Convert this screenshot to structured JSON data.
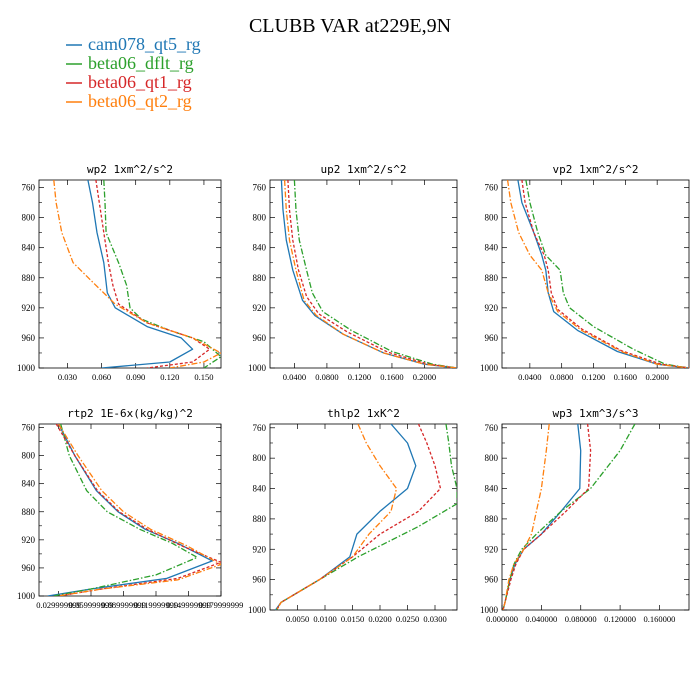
{
  "figure": {
    "title": "CLUBB VAR at229E,9N"
  },
  "legend": [
    {
      "label": "cam078_qt5_rg",
      "color": "#1f77b4"
    },
    {
      "label": "beta06_dflt_rg",
      "color": "#2ca02c"
    },
    {
      "label": "beta06_qt1_rg",
      "color": "#d62728"
    },
    {
      "label": "beta06_qt2_rg",
      "color": "#ff7f0e"
    }
  ],
  "chart_data": [
    {
      "type": "line",
      "title": "wp2   1xm^2/s^2",
      "xlim": [
        0.005,
        0.165
      ],
      "ylim": [
        750,
        1000
      ],
      "y_inverted": true,
      "xticks": [
        0.03,
        0.06,
        0.09,
        0.12,
        0.15
      ],
      "xtick_labels": [
        "0.030",
        "0.060",
        "0.090",
        "0.120",
        "0.150"
      ],
      "yticks": [
        760,
        800,
        840,
        880,
        920,
        960,
        1000
      ],
      "series": [
        {
          "color": "#1f77b4",
          "dash": "solid",
          "x": [
            0.048,
            0.052,
            0.056,
            0.062,
            0.065,
            0.072,
            0.1,
            0.13,
            0.14,
            0.12,
            0.06
          ],
          "y": [
            750,
            780,
            820,
            860,
            900,
            920,
            945,
            960,
            975,
            992,
            1000
          ]
        },
        {
          "color": "#2ca02c",
          "dash": "dashdot",
          "x": [
            0.062,
            0.063,
            0.064,
            0.075,
            0.082,
            0.085,
            0.095,
            0.12,
            0.15,
            0.165,
            0.15
          ],
          "y": [
            750,
            780,
            820,
            860,
            890,
            920,
            935,
            950,
            965,
            985,
            1000
          ]
        },
        {
          "color": "#d62728",
          "dash": "dashed",
          "x": [
            0.055,
            0.058,
            0.062,
            0.066,
            0.07,
            0.075,
            0.1,
            0.14,
            0.155,
            0.14,
            0.1
          ],
          "y": [
            750,
            780,
            820,
            860,
            890,
            915,
            940,
            960,
            975,
            992,
            1000
          ]
        },
        {
          "color": "#ff7f0e",
          "dash": "dashdot",
          "x": [
            0.018,
            0.02,
            0.025,
            0.035,
            0.055,
            0.072,
            0.1,
            0.14,
            0.165,
            0.15,
            0.12
          ],
          "y": [
            750,
            780,
            820,
            860,
            890,
            915,
            940,
            960,
            980,
            992,
            1000
          ]
        }
      ]
    },
    {
      "type": "line",
      "title": "up2   1xm^2/s^2",
      "xlim": [
        0.01,
        0.24
      ],
      "ylim": [
        750,
        1000
      ],
      "y_inverted": true,
      "xticks": [
        0.04,
        0.08,
        0.12,
        0.16,
        0.2
      ],
      "xtick_labels": [
        "0.0400",
        "0.0800",
        "0.1200",
        "0.1600",
        "0.2000"
      ],
      "yticks": [
        760,
        800,
        840,
        880,
        920,
        960,
        1000
      ],
      "series": [
        {
          "color": "#1f77b4",
          "dash": "solid",
          "x": [
            0.024,
            0.026,
            0.03,
            0.038,
            0.05,
            0.065,
            0.1,
            0.15,
            0.2,
            0.24
          ],
          "y": [
            750,
            790,
            830,
            870,
            910,
            930,
            955,
            980,
            995,
            1000
          ]
        },
        {
          "color": "#2ca02c",
          "dash": "dashdot",
          "x": [
            0.04,
            0.042,
            0.046,
            0.055,
            0.062,
            0.075,
            0.11,
            0.16,
            0.21,
            0.24
          ],
          "y": [
            750,
            790,
            830,
            870,
            900,
            925,
            950,
            978,
            995,
            1000
          ]
        },
        {
          "color": "#d62728",
          "dash": "dashed",
          "x": [
            0.032,
            0.034,
            0.038,
            0.045,
            0.055,
            0.07,
            0.105,
            0.155,
            0.205,
            0.24
          ],
          "y": [
            750,
            790,
            830,
            870,
            905,
            928,
            952,
            979,
            995,
            1000
          ]
        },
        {
          "color": "#ff7f0e",
          "dash": "dashdot",
          "x": [
            0.028,
            0.03,
            0.034,
            0.042,
            0.052,
            0.067,
            0.1,
            0.15,
            0.2,
            0.24
          ],
          "y": [
            750,
            790,
            830,
            870,
            910,
            930,
            955,
            980,
            995,
            1000
          ]
        }
      ]
    },
    {
      "type": "line",
      "title": "vp2   1xm^2/s^2",
      "xlim": [
        0.005,
        0.24
      ],
      "ylim": [
        750,
        1000
      ],
      "y_inverted": true,
      "xticks": [
        0.04,
        0.08,
        0.12,
        0.16,
        0.2
      ],
      "xtick_labels": [
        "0.0400",
        "0.0800",
        "0.1200",
        "0.1600",
        "0.2000"
      ],
      "yticks": [
        760,
        800,
        840,
        880,
        920,
        960,
        1000
      ],
      "series": [
        {
          "color": "#1f77b4",
          "dash": "solid",
          "x": [
            0.025,
            0.03,
            0.045,
            0.055,
            0.06,
            0.063,
            0.07,
            0.1,
            0.15,
            0.2,
            0.24
          ],
          "y": [
            750,
            780,
            820,
            850,
            870,
            900,
            925,
            950,
            978,
            995,
            1000
          ]
        },
        {
          "color": "#2ca02c",
          "dash": "dashdot",
          "x": [
            0.035,
            0.04,
            0.05,
            0.06,
            0.078,
            0.082,
            0.09,
            0.12,
            0.17,
            0.21,
            0.24
          ],
          "y": [
            750,
            780,
            820,
            850,
            870,
            900,
            920,
            945,
            975,
            995,
            1000
          ]
        },
        {
          "color": "#d62728",
          "dash": "dashed",
          "x": [
            0.03,
            0.034,
            0.045,
            0.058,
            0.063,
            0.067,
            0.075,
            0.105,
            0.155,
            0.205,
            0.24
          ],
          "y": [
            750,
            780,
            820,
            850,
            870,
            900,
            922,
            948,
            977,
            995,
            1000
          ]
        },
        {
          "color": "#ff7f0e",
          "dash": "dashdot",
          "x": [
            0.012,
            0.016,
            0.026,
            0.04,
            0.055,
            0.063,
            0.075,
            0.105,
            0.155,
            0.2,
            0.24
          ],
          "y": [
            750,
            780,
            820,
            850,
            870,
            900,
            925,
            950,
            978,
            995,
            1000
          ]
        }
      ]
    },
    {
      "type": "line",
      "title": "rtp2   1E-6x(kg/kg)^2",
      "xlim": [
        0.012,
        0.18
      ],
      "ylim": [
        755,
        1000
      ],
      "y_inverted": true,
      "xticks": [
        0.03,
        0.06,
        0.09,
        0.12,
        0.15,
        0.18
      ],
      "xtick_labels": [
        "0.029999999",
        "0.059999999",
        "0.089999999",
        "0.119999999",
        "0.149999999",
        "0.179999999"
      ],
      "yticks": [
        760,
        800,
        840,
        880,
        920,
        960,
        1000
      ],
      "series": [
        {
          "color": "#1f77b4",
          "dash": "solid",
          "x": [
            0.03,
            0.045,
            0.065,
            0.085,
            0.11,
            0.14,
            0.172,
            0.13,
            0.06,
            0.02
          ],
          "y": [
            755,
            800,
            850,
            880,
            905,
            925,
            950,
            975,
            990,
            1000
          ]
        },
        {
          "color": "#2ca02c",
          "dash": "dashdot",
          "x": [
            0.032,
            0.04,
            0.056,
            0.075,
            0.105,
            0.135,
            0.158,
            0.12,
            0.06,
            0.025
          ],
          "y": [
            755,
            800,
            850,
            880,
            905,
            925,
            945,
            970,
            990,
            1000
          ]
        },
        {
          "color": "#d62728",
          "dash": "dashed",
          "x": [
            0.028,
            0.045,
            0.066,
            0.086,
            0.112,
            0.143,
            0.18,
            0.14,
            0.07,
            0.03
          ],
          "y": [
            755,
            800,
            850,
            880,
            905,
            928,
            952,
            975,
            990,
            1000
          ]
        },
        {
          "color": "#ff7f0e",
          "dash": "dashdot",
          "x": [
            0.03,
            0.048,
            0.07,
            0.09,
            0.115,
            0.148,
            0.18,
            0.14,
            0.07,
            0.03
          ],
          "y": [
            755,
            800,
            850,
            880,
            905,
            928,
            955,
            977,
            990,
            1000
          ]
        }
      ]
    },
    {
      "type": "line",
      "title": "thlp2   1xK^2",
      "xlim": [
        0.0,
        0.034
      ],
      "ylim": [
        755,
        1000
      ],
      "y_inverted": true,
      "xticks": [
        0.005,
        0.01,
        0.015,
        0.02,
        0.025,
        0.03
      ],
      "xtick_labels": [
        "0.0050",
        "0.0100",
        "0.0150",
        "0.0200",
        "0.0250",
        "0.0300"
      ],
      "yticks": [
        760,
        800,
        840,
        880,
        920,
        960,
        1000
      ],
      "series": [
        {
          "color": "#1f77b4",
          "dash": "solid",
          "x": [
            0.022,
            0.025,
            0.0265,
            0.025,
            0.02,
            0.0158,
            0.0145,
            0.009,
            0.002,
            0.001
          ],
          "y": [
            755,
            780,
            810,
            840,
            870,
            900,
            930,
            960,
            990,
            1000
          ]
        },
        {
          "color": "#2ca02c",
          "dash": "dashdot",
          "x": [
            0.032,
            0.0325,
            0.033,
            0.034,
            0.034,
            0.027,
            0.016,
            0.009,
            0.002,
            0.0012
          ],
          "y": [
            755,
            780,
            810,
            840,
            860,
            890,
            930,
            960,
            990,
            1000
          ]
        },
        {
          "color": "#d62728",
          "dash": "dashed",
          "x": [
            0.027,
            0.0285,
            0.03,
            0.031,
            0.027,
            0.02,
            0.015,
            0.009,
            0.002,
            0.0012
          ],
          "y": [
            755,
            780,
            810,
            840,
            870,
            900,
            930,
            960,
            990,
            1000
          ]
        },
        {
          "color": "#ff7f0e",
          "dash": "dashdot",
          "x": [
            0.016,
            0.0175,
            0.02,
            0.023,
            0.022,
            0.018,
            0.015,
            0.009,
            0.002,
            0.0012
          ],
          "y": [
            755,
            780,
            810,
            840,
            870,
            900,
            930,
            960,
            990,
            1000
          ]
        }
      ]
    },
    {
      "type": "line",
      "title": "wp3   1xm^3/s^3",
      "xlim": [
        0.0,
        0.19
      ],
      "ylim": [
        755,
        1000
      ],
      "y_inverted": true,
      "xticks": [
        0.0,
        0.04,
        0.08,
        0.12,
        0.16
      ],
      "xtick_labels": [
        "0.000000",
        "0.040000",
        "0.080000",
        "0.120000",
        "0.160000"
      ],
      "yticks": [
        760,
        800,
        840,
        880,
        920,
        960,
        1000
      ],
      "series": [
        {
          "color": "#1f77b4",
          "dash": "solid",
          "x": [
            0.077,
            0.08,
            0.079,
            0.06,
            0.04,
            0.022,
            0.013,
            0.008,
            0.003,
            0.001
          ],
          "y": [
            755,
            790,
            840,
            870,
            900,
            920,
            940,
            960,
            990,
            1000
          ]
        },
        {
          "color": "#2ca02c",
          "dash": "dashdot",
          "x": [
            0.135,
            0.12,
            0.09,
            0.06,
            0.035,
            0.02,
            0.012,
            0.008,
            0.003,
            0.001
          ],
          "y": [
            755,
            790,
            840,
            870,
            900,
            920,
            940,
            960,
            990,
            1000
          ]
        },
        {
          "color": "#d62728",
          "dash": "dashed",
          "x": [
            0.087,
            0.09,
            0.088,
            0.065,
            0.04,
            0.022,
            0.014,
            0.009,
            0.003,
            0.001
          ],
          "y": [
            755,
            790,
            840,
            870,
            900,
            920,
            940,
            960,
            990,
            1000
          ]
        },
        {
          "color": "#ff7f0e",
          "dash": "dashdot",
          "x": [
            0.048,
            0.045,
            0.04,
            0.035,
            0.03,
            0.022,
            0.012,
            0.007,
            0.003,
            0.001
          ],
          "y": [
            755,
            790,
            840,
            870,
            900,
            920,
            940,
            960,
            990,
            1000
          ]
        }
      ]
    }
  ]
}
